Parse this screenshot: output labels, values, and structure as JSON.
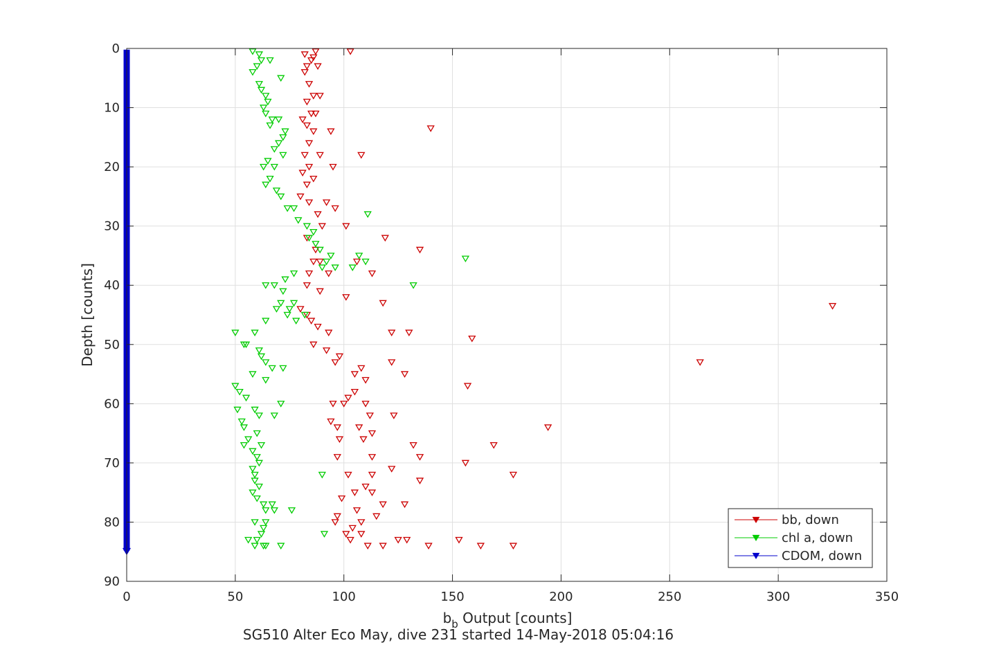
{
  "chart_data": {
    "type": "scatter",
    "title": "SG510 Alter Eco May, dive 231 started 14-May-2018 05:04:16",
    "xlabel_main": "b",
    "xlabel_sub": "b",
    "xlabel_rest": " Output [counts]",
    "ylabel": "Depth [counts]",
    "xlim": [
      0,
      350
    ],
    "ylim": [
      0,
      90
    ],
    "y_reversed": true,
    "xticks": [
      "0",
      "50",
      "100",
      "150",
      "200",
      "250",
      "300",
      "350"
    ],
    "yticks": [
      "0",
      "10",
      "20",
      "30",
      "40",
      "50",
      "60",
      "70",
      "80",
      "90"
    ],
    "grid": true,
    "legend_position": "bottom-right",
    "marker": "down-triangle",
    "series": [
      {
        "name": "bb, down",
        "color": "#cc0000",
        "points": [
          [
            103,
            0.5
          ],
          [
            87,
            0.5
          ],
          [
            86,
            1.5
          ],
          [
            82,
            1
          ],
          [
            88,
            3
          ],
          [
            85,
            2
          ],
          [
            83,
            3
          ],
          [
            82,
            4
          ],
          [
            84,
            6
          ],
          [
            86,
            8
          ],
          [
            89,
            8
          ],
          [
            83,
            9
          ],
          [
            85,
            11
          ],
          [
            87,
            11
          ],
          [
            81,
            12
          ],
          [
            83,
            13
          ],
          [
            86,
            14
          ],
          [
            94,
            14
          ],
          [
            140,
            13.5
          ],
          [
            84,
            16
          ],
          [
            89,
            18
          ],
          [
            82,
            18
          ],
          [
            108,
            18
          ],
          [
            84,
            20
          ],
          [
            81,
            21
          ],
          [
            95,
            20
          ],
          [
            83,
            23
          ],
          [
            86,
            22
          ],
          [
            80,
            25
          ],
          [
            84,
            26
          ],
          [
            88,
            28
          ],
          [
            92,
            26
          ],
          [
            96,
            27
          ],
          [
            90,
            30
          ],
          [
            101,
            30
          ],
          [
            83,
            32
          ],
          [
            87,
            34
          ],
          [
            119,
            32
          ],
          [
            135,
            34
          ],
          [
            86,
            36
          ],
          [
            89,
            36
          ],
          [
            84,
            38
          ],
          [
            93,
            38
          ],
          [
            106,
            36
          ],
          [
            113,
            38
          ],
          [
            83,
            40
          ],
          [
            89,
            41
          ],
          [
            101,
            42
          ],
          [
            118,
            43
          ],
          [
            80,
            44
          ],
          [
            83,
            45
          ],
          [
            85,
            46
          ],
          [
            88,
            47
          ],
          [
            93,
            48
          ],
          [
            122,
            48
          ],
          [
            130,
            48
          ],
          [
            159,
            49
          ],
          [
            86,
            50
          ],
          [
            92,
            51
          ],
          [
            98,
            52
          ],
          [
            96,
            53
          ],
          [
            105,
            55
          ],
          [
            108,
            54
          ],
          [
            122,
            53
          ],
          [
            128,
            55
          ],
          [
            110,
            56
          ],
          [
            105,
            58
          ],
          [
            157,
            57
          ],
          [
            102,
            59
          ],
          [
            100,
            60
          ],
          [
            95,
            60
          ],
          [
            110,
            60
          ],
          [
            112,
            62
          ],
          [
            123,
            62
          ],
          [
            94,
            63
          ],
          [
            97,
            64
          ],
          [
            107,
            64
          ],
          [
            113,
            65
          ],
          [
            98,
            66
          ],
          [
            109,
            66
          ],
          [
            132,
            67
          ],
          [
            135,
            69
          ],
          [
            97,
            69
          ],
          [
            113,
            69
          ],
          [
            194,
            64
          ],
          [
            169,
            67
          ],
          [
            122,
            71
          ],
          [
            156,
            70
          ],
          [
            102,
            72
          ],
          [
            113,
            72
          ],
          [
            178,
            72
          ],
          [
            110,
            74
          ],
          [
            105,
            75
          ],
          [
            99,
            76
          ],
          [
            113,
            75
          ],
          [
            118,
            77
          ],
          [
            128,
            77
          ],
          [
            135,
            73
          ],
          [
            106,
            78
          ],
          [
            97,
            79
          ],
          [
            108,
            80
          ],
          [
            115,
            79
          ],
          [
            104,
            81
          ],
          [
            101,
            82
          ],
          [
            108,
            82
          ],
          [
            96,
            80
          ],
          [
            103,
            83
          ],
          [
            111,
            84
          ],
          [
            118,
            84
          ],
          [
            125,
            83
          ],
          [
            129,
            83
          ],
          [
            139,
            84
          ],
          [
            153,
            83
          ],
          [
            163,
            84
          ],
          [
            178,
            84
          ],
          [
            264,
            53
          ],
          [
            325,
            43.5
          ]
        ]
      },
      {
        "name": "chl a, down",
        "color": "#00cc00",
        "points": [
          [
            58,
            0.5
          ],
          [
            61,
            1
          ],
          [
            62,
            2
          ],
          [
            66,
            2
          ],
          [
            60,
            3
          ],
          [
            58,
            4
          ],
          [
            71,
            5
          ],
          [
            61,
            6
          ],
          [
            62,
            7
          ],
          [
            64,
            8
          ],
          [
            65,
            9
          ],
          [
            63,
            10
          ],
          [
            64,
            11
          ],
          [
            67,
            12
          ],
          [
            66,
            13
          ],
          [
            70,
            12
          ],
          [
            73,
            14
          ],
          [
            72,
            15
          ],
          [
            70,
            16
          ],
          [
            68,
            17
          ],
          [
            72,
            18
          ],
          [
            65,
            19
          ],
          [
            68,
            20
          ],
          [
            63,
            20
          ],
          [
            66,
            22
          ],
          [
            64,
            23
          ],
          [
            69,
            24
          ],
          [
            71,
            25
          ],
          [
            74,
            27
          ],
          [
            77,
            27
          ],
          [
            79,
            29
          ],
          [
            83,
            30
          ],
          [
            86,
            31
          ],
          [
            84,
            32
          ],
          [
            87,
            33
          ],
          [
            89,
            34
          ],
          [
            94,
            35
          ],
          [
            92,
            36
          ],
          [
            90,
            37
          ],
          [
            96,
            37
          ],
          [
            104,
            37
          ],
          [
            107,
            35
          ],
          [
            110,
            36
          ],
          [
            111,
            28
          ],
          [
            156,
            35.5
          ],
          [
            132,
            40
          ],
          [
            77,
            38
          ],
          [
            73,
            39
          ],
          [
            68,
            40
          ],
          [
            64,
            40
          ],
          [
            72,
            41
          ],
          [
            71,
            43
          ],
          [
            77,
            43
          ],
          [
            69,
            44
          ],
          [
            75,
            44
          ],
          [
            82,
            45
          ],
          [
            78,
            46
          ],
          [
            74,
            45
          ],
          [
            64,
            46
          ],
          [
            59,
            48
          ],
          [
            50,
            48
          ],
          [
            55,
            50
          ],
          [
            54,
            50
          ],
          [
            61,
            51
          ],
          [
            62,
            52
          ],
          [
            64,
            53
          ],
          [
            67,
            54
          ],
          [
            72,
            54
          ],
          [
            58,
            55
          ],
          [
            64,
            56
          ],
          [
            50,
            57
          ],
          [
            52,
            58
          ],
          [
            55,
            59
          ],
          [
            71,
            60
          ],
          [
            51,
            61
          ],
          [
            59,
            61
          ],
          [
            61,
            62
          ],
          [
            68,
            62
          ],
          [
            53,
            63
          ],
          [
            54,
            64
          ],
          [
            60,
            65
          ],
          [
            56,
            66
          ],
          [
            62,
            67
          ],
          [
            54,
            67
          ],
          [
            58,
            68
          ],
          [
            60,
            69
          ],
          [
            61,
            70
          ],
          [
            58,
            71
          ],
          [
            59,
            72
          ],
          [
            90,
            72
          ],
          [
            59,
            73
          ],
          [
            61,
            74
          ],
          [
            58,
            75
          ],
          [
            60,
            76
          ],
          [
            63,
            77
          ],
          [
            67,
            77
          ],
          [
            64,
            78
          ],
          [
            68,
            78
          ],
          [
            76,
            78
          ],
          [
            59,
            80
          ],
          [
            64,
            80
          ],
          [
            63,
            81
          ],
          [
            62,
            82
          ],
          [
            60,
            83
          ],
          [
            56,
            83
          ],
          [
            59,
            84
          ],
          [
            63,
            84
          ],
          [
            64,
            84
          ],
          [
            71,
            84
          ],
          [
            91,
            82
          ]
        ]
      },
      {
        "name": "CDOM, down",
        "color": "#0000cc",
        "points": [
          [
            0,
            0.2
          ],
          [
            0,
            84.8
          ]
        ]
      }
    ]
  }
}
